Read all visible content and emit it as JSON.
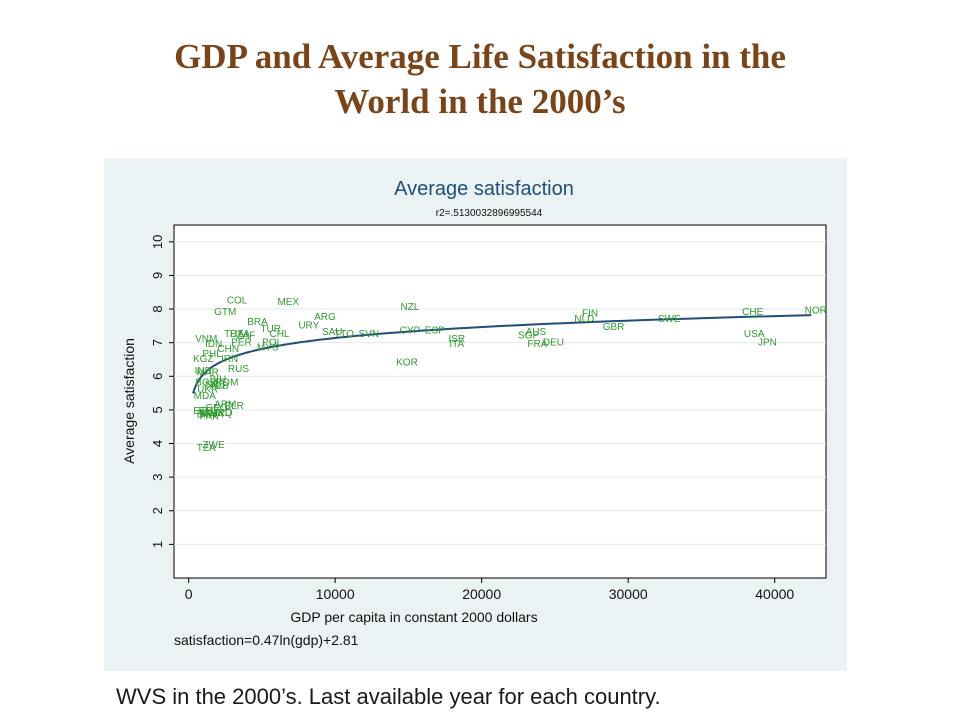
{
  "slide": {
    "title_line1": "GDP and Average Life Satisfaction in the",
    "title_line2": "World in the 2000’s",
    "footer": "WVS in the 2000’s. Last available year for each country.",
    "title_color": "#7b4418"
  },
  "chart_data": {
    "type": "scatter",
    "title": "Average satisfaction",
    "subtitle": "r2=.5130032896995544",
    "xlabel": "GDP per capita in constant 2000 dollars",
    "ylabel": "Average satisfaction",
    "note": "satisfaction=0.47ln(gdp)+2.81",
    "xlim": [
      -1000,
      43500
    ],
    "ylim": [
      0,
      10.5
    ],
    "xticks": [
      0,
      10000,
      20000,
      30000,
      40000
    ],
    "yticks": [
      1,
      2,
      3,
      4,
      5,
      6,
      7,
      8,
      9,
      10
    ],
    "grid": true,
    "background": "#eaf2f3",
    "plot_background": "#ffffff",
    "point_color": "#2e9a2e",
    "fit_color": "#1f4e79",
    "fit": {
      "a": 0.47,
      "b": 2.81,
      "x_from": 300,
      "x_to": 42500
    },
    "points": [
      {
        "label": "NOR",
        "x": 42800,
        "y": 7.95
      },
      {
        "label": "CHE",
        "x": 38500,
        "y": 7.9
      },
      {
        "label": "USA",
        "x": 38600,
        "y": 7.25
      },
      {
        "label": "JPN",
        "x": 39500,
        "y": 7.0
      },
      {
        "label": "SWE",
        "x": 32800,
        "y": 7.7
      },
      {
        "label": "GBR",
        "x": 29000,
        "y": 7.45
      },
      {
        "label": "FIN",
        "x": 27400,
        "y": 7.85
      },
      {
        "label": "NLD",
        "x": 27000,
        "y": 7.7
      },
      {
        "label": "DEU",
        "x": 24900,
        "y": 7.0
      },
      {
        "label": "FRA",
        "x": 23800,
        "y": 6.95
      },
      {
        "label": "AUS",
        "x": 23700,
        "y": 7.3
      },
      {
        "label": "SGP",
        "x": 23200,
        "y": 7.2
      },
      {
        "label": "ISR",
        "x": 18300,
        "y": 7.1
      },
      {
        "label": "ITA",
        "x": 18300,
        "y": 6.95
      },
      {
        "label": "ESP",
        "x": 16800,
        "y": 7.35
      },
      {
        "label": "CYP",
        "x": 15100,
        "y": 7.35
      },
      {
        "label": "NZL",
        "x": 15100,
        "y": 8.05
      },
      {
        "label": "KOR",
        "x": 14900,
        "y": 6.4
      },
      {
        "label": "SVN",
        "x": 12300,
        "y": 7.25
      },
      {
        "label": "TTO",
        "x": 10600,
        "y": 7.25
      },
      {
        "label": "SAU",
        "x": 9800,
        "y": 7.3
      },
      {
        "label": "ARG",
        "x": 9300,
        "y": 7.75
      },
      {
        "label": "URY",
        "x": 8200,
        "y": 7.5
      },
      {
        "label": "MEX",
        "x": 6800,
        "y": 8.2
      },
      {
        "label": "CHL",
        "x": 6200,
        "y": 7.25
      },
      {
        "label": "POL",
        "x": 5700,
        "y": 7.0
      },
      {
        "label": "MYS",
        "x": 5400,
        "y": 6.85
      },
      {
        "label": "TUR",
        "x": 5600,
        "y": 7.4
      },
      {
        "label": "BRA",
        "x": 4700,
        "y": 7.6
      },
      {
        "label": "COL",
        "x": 3300,
        "y": 8.25
      },
      {
        "label": "GTM",
        "x": 2500,
        "y": 7.9
      },
      {
        "label": "ZAF",
        "x": 3900,
        "y": 7.2
      },
      {
        "label": "PER",
        "x": 3600,
        "y": 7.0
      },
      {
        "label": "THA",
        "x": 3100,
        "y": 7.25
      },
      {
        "label": "DZA",
        "x": 3500,
        "y": 7.25
      },
      {
        "label": "VNM",
        "x": 1200,
        "y": 7.1
      },
      {
        "label": "IDN",
        "x": 1700,
        "y": 6.95
      },
      {
        "label": "CHN",
        "x": 2700,
        "y": 6.8
      },
      {
        "label": "PHL",
        "x": 1600,
        "y": 6.65
      },
      {
        "label": "IRN",
        "x": 2800,
        "y": 6.5
      },
      {
        "label": "KGZ",
        "x": 1000,
        "y": 6.5
      },
      {
        "label": "RUS",
        "x": 3400,
        "y": 6.2
      },
      {
        "label": "IND",
        "x": 1000,
        "y": 6.15
      },
      {
        "label": "MAR",
        "x": 1300,
        "y": 6.1
      },
      {
        "label": "BGR",
        "x": 1200,
        "y": 5.8
      },
      {
        "label": "ROM",
        "x": 2600,
        "y": 5.8
      },
      {
        "label": "SRB",
        "x": 1800,
        "y": 5.75
      },
      {
        "label": "UKR",
        "x": 1300,
        "y": 5.6
      },
      {
        "label": "ALB",
        "x": 2100,
        "y": 5.7
      },
      {
        "label": "BIH",
        "x": 2000,
        "y": 5.9
      },
      {
        "label": "MDA",
        "x": 1100,
        "y": 5.4
      },
      {
        "label": "ARM",
        "x": 2500,
        "y": 5.15
      },
      {
        "label": "GEO",
        "x": 1900,
        "y": 5.05
      },
      {
        "label": "MKD",
        "x": 2200,
        "y": 4.9
      },
      {
        "label": "EGY",
        "x": 1400,
        "y": 4.95
      },
      {
        "label": "ETH",
        "x": 1000,
        "y": 4.95
      },
      {
        "label": "BFA",
        "x": 1200,
        "y": 4.85
      },
      {
        "label": "MLI",
        "x": 1300,
        "y": 4.9
      },
      {
        "label": "RWA",
        "x": 1600,
        "y": 4.85
      },
      {
        "label": "IRQ",
        "x": 2400,
        "y": 4.9
      },
      {
        "label": "BLR",
        "x": 3100,
        "y": 5.1
      },
      {
        "label": "PAK",
        "x": 1400,
        "y": 4.8
      },
      {
        "label": "ZWE",
        "x": 1700,
        "y": 3.95
      },
      {
        "label": "TZA",
        "x": 1200,
        "y": 3.85
      }
    ]
  }
}
